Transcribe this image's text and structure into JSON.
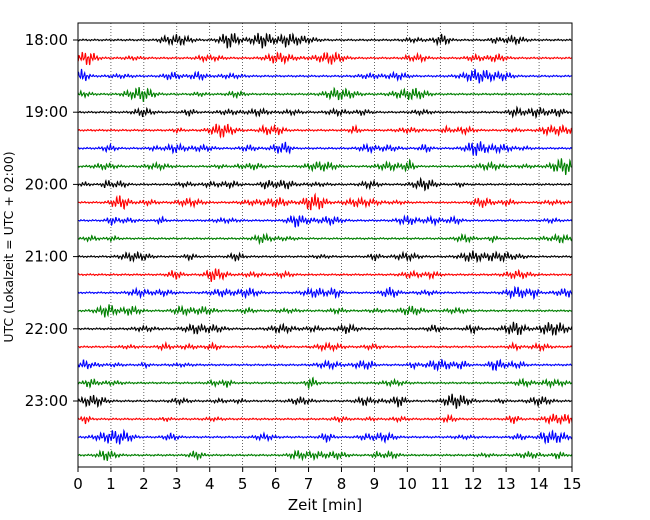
{
  "chart_data": {
    "type": "line",
    "title": "",
    "xlabel": "Zeit  [min]",
    "ylabel": "UTC (Lokalzeit = UTC + 02:00)",
    "xlim": [
      0,
      15
    ],
    "x_ticks": [
      0,
      1,
      2,
      3,
      4,
      5,
      6,
      7,
      8,
      9,
      10,
      11,
      12,
      13,
      14,
      15
    ],
    "x_tick_labels": [
      "0",
      "1",
      "2",
      "3",
      "4",
      "5",
      "6",
      "7",
      "8",
      "9",
      "10",
      "11",
      "12",
      "13",
      "14",
      "15"
    ],
    "y_tick_labels": [
      "18:00",
      "19:00",
      "20:00",
      "21:00",
      "22:00",
      "23:00"
    ],
    "y_tick_rows": [
      0,
      4,
      8,
      12,
      16,
      20
    ],
    "trace_count": 24,
    "trace_interval_min": 15,
    "trace_start": "18:00",
    "trace_colors": [
      "#000000",
      "#ff0000",
      "#0000ff",
      "#008000"
    ],
    "grid": "vertical dotted lines at each minute",
    "legend": "none"
  }
}
